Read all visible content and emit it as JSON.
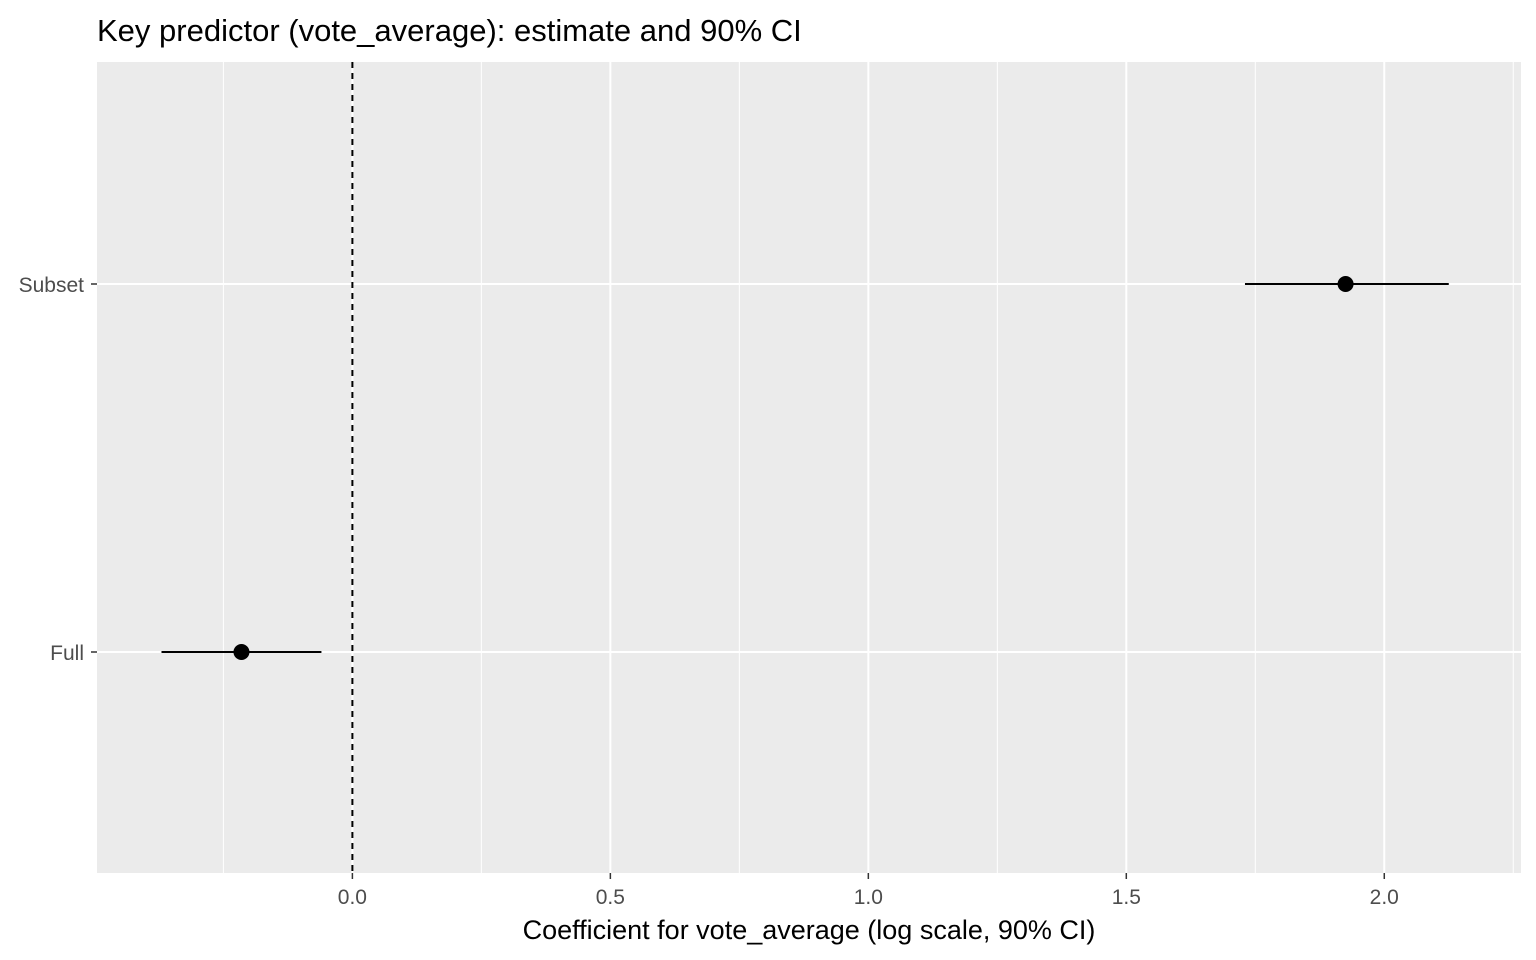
{
  "chart_data": {
    "type": "scatter",
    "title": "Key predictor (vote_average): estimate and 90% CI",
    "xlabel": "Coefficient for vote_average (log scale, 90% CI)",
    "ylabel": "",
    "categories": [
      "Full",
      "Subset"
    ],
    "points": [
      {
        "label": "Full",
        "estimate": -0.215,
        "ci_low": -0.37,
        "ci_high": -0.06
      },
      {
        "label": "Subset",
        "estimate": 1.925,
        "ci_low": 1.73,
        "ci_high": 2.125
      }
    ],
    "xlim": [
      -0.495,
      2.265
    ],
    "x_ticks": [
      0.0,
      0.5,
      1.0,
      1.5,
      2.0
    ],
    "x_tick_labels": [
      "0.0",
      "0.5",
      "1.0",
      "1.5",
      "2.0"
    ],
    "reference_line": {
      "x": 0,
      "style": "dashed"
    },
    "grid": true,
    "legend": "none",
    "colors": {
      "panel": "#ebebeb",
      "grid": "#ffffff",
      "mark": "#000000",
      "tick_text": "#4d4d4d"
    }
  }
}
